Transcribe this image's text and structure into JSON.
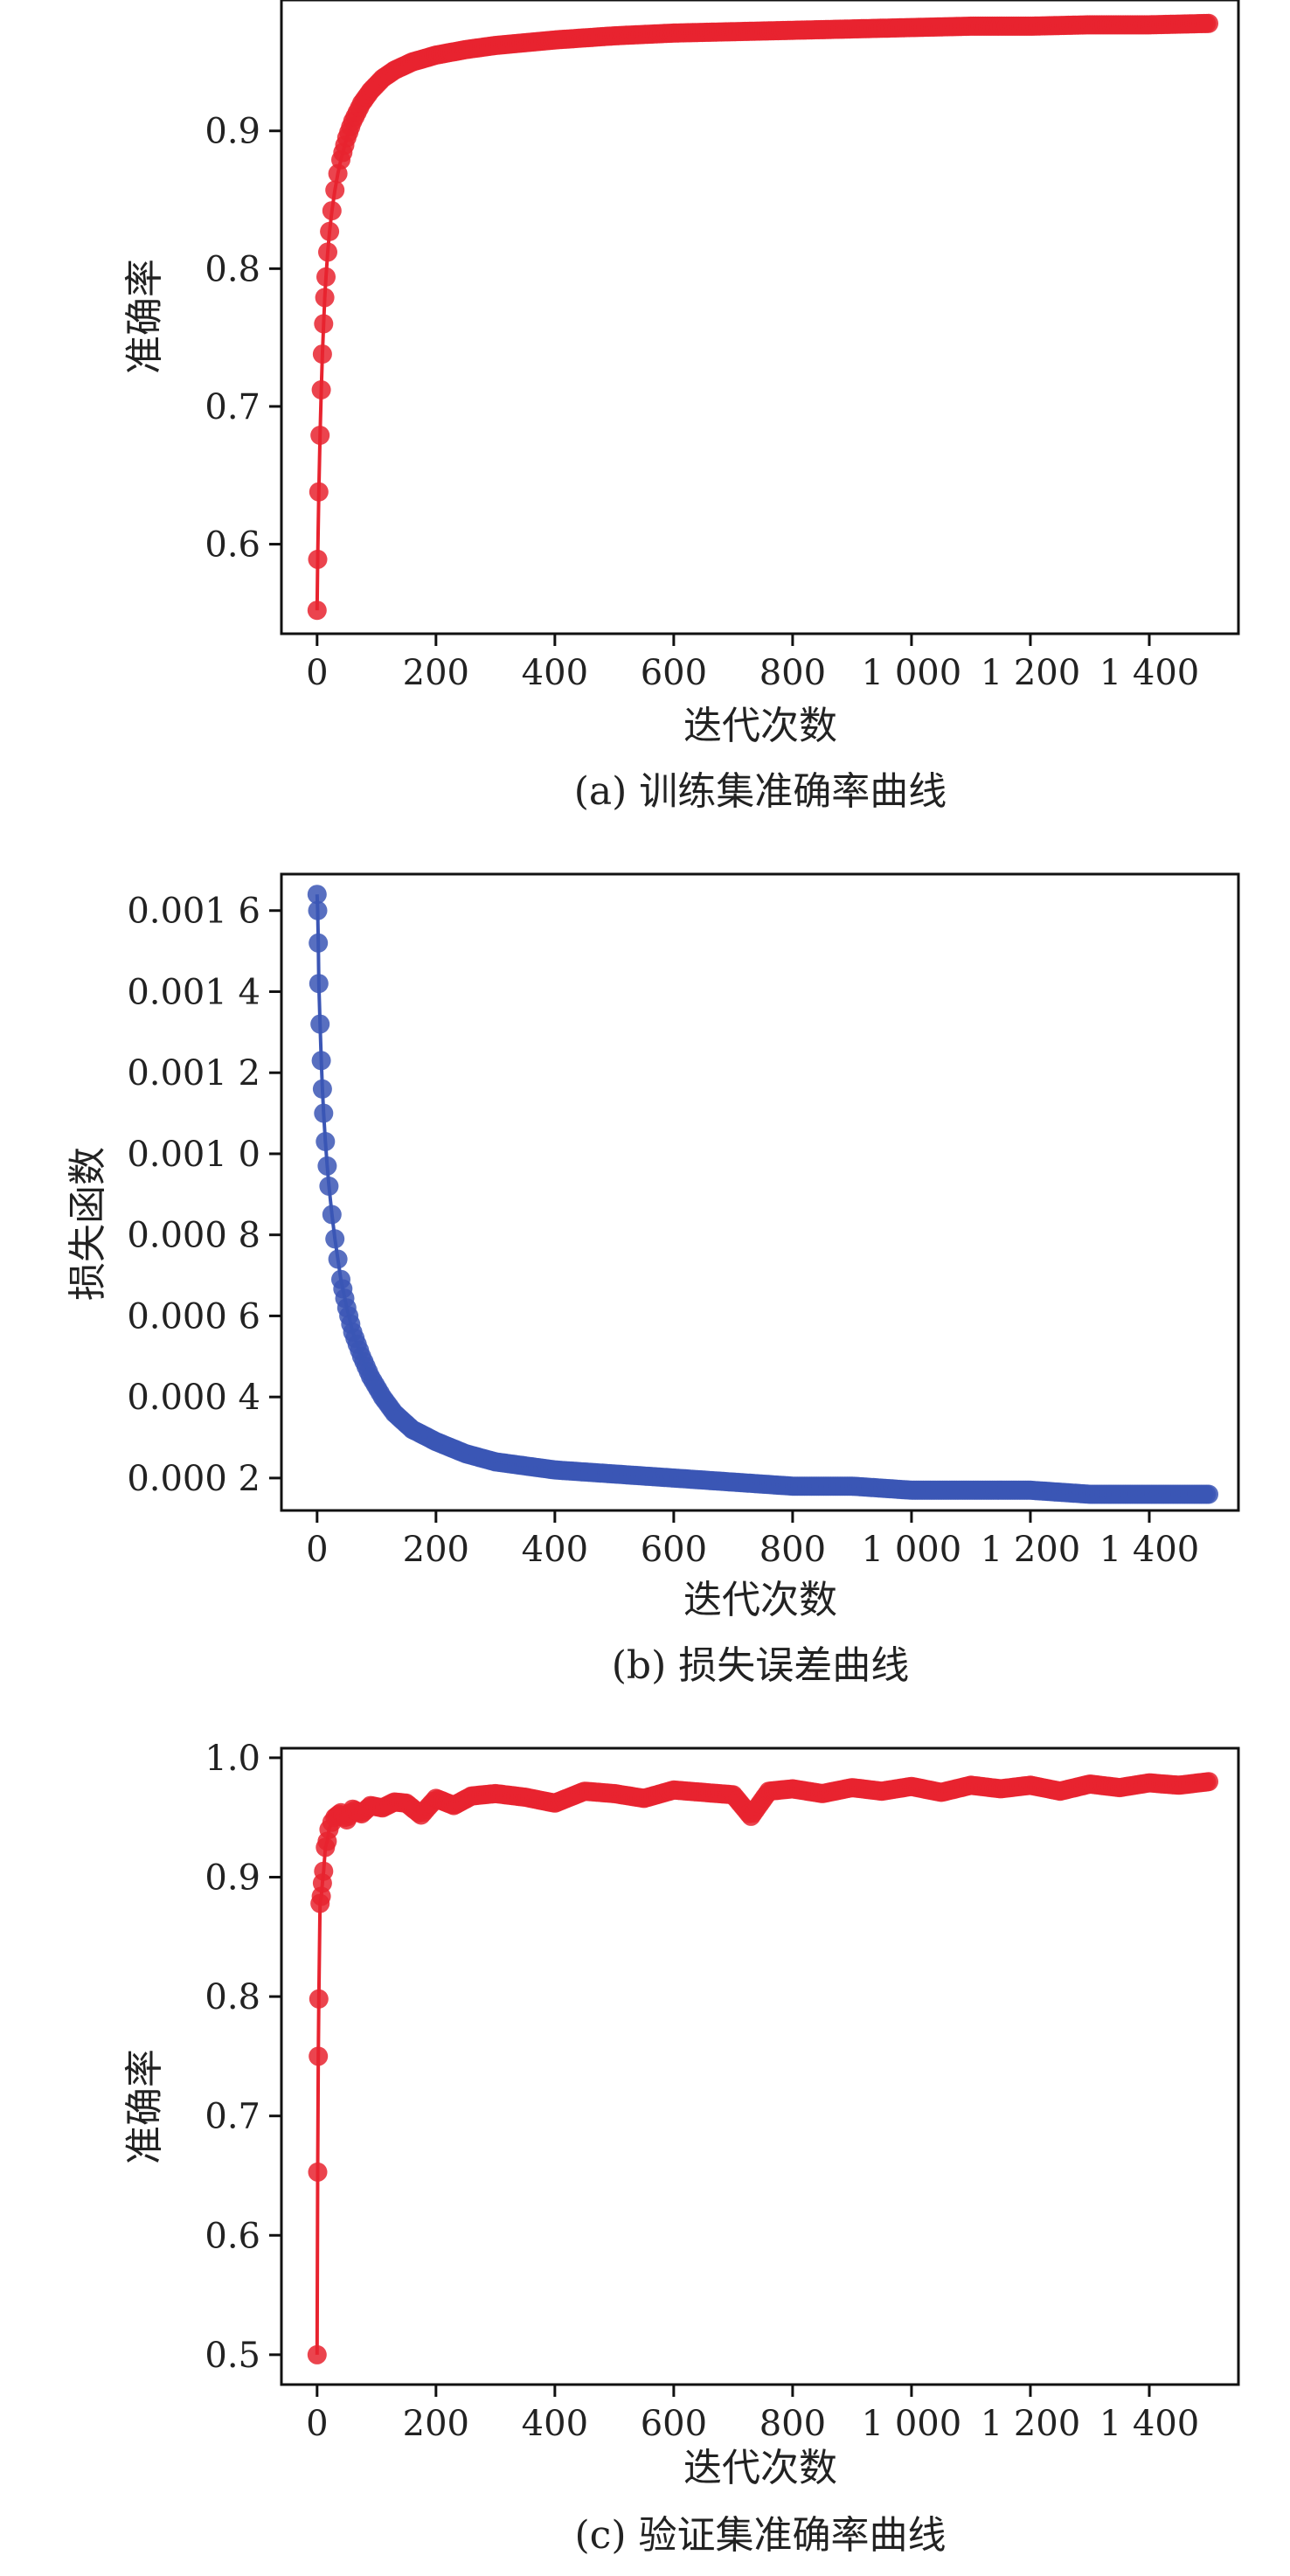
{
  "chart_data": [
    {
      "type": "line",
      "caption": "(a) 训练集准确率曲线",
      "xlabel": "迭代次数",
      "ylabel": "准确率",
      "xlim": [
        -60,
        1550
      ],
      "ylim": [
        0.535,
        0.995
      ],
      "xticks": [
        0,
        200,
        400,
        600,
        800,
        1000,
        1200,
        1400
      ],
      "xtick_labels": [
        "0",
        "200",
        "400",
        "600",
        "800",
        "1 000",
        "1 200",
        "1 400"
      ],
      "yticks": [
        0.6,
        0.7,
        0.8,
        0.9
      ],
      "ytick_labels": [
        "0.6",
        "0.7",
        "0.8",
        "0.9"
      ],
      "grid": false,
      "legend": "none",
      "series": [
        {
          "color": "#e8232f",
          "points": [
            [
              0,
              0.552
            ],
            [
              1,
              0.589
            ],
            [
              3,
              0.638
            ],
            [
              5,
              0.679
            ],
            [
              7,
              0.712
            ],
            [
              9,
              0.738
            ],
            [
              11,
              0.76
            ],
            [
              13,
              0.779
            ],
            [
              15,
              0.794
            ],
            [
              18,
              0.812
            ],
            [
              21,
              0.827
            ],
            [
              25,
              0.842
            ],
            [
              30,
              0.857
            ],
            [
              35,
              0.869
            ],
            [
              40,
              0.879
            ],
            [
              50,
              0.895
            ],
            [
              60,
              0.907
            ],
            [
              75,
              0.92
            ],
            [
              90,
              0.929
            ],
            [
              110,
              0.938
            ],
            [
              130,
              0.944
            ],
            [
              160,
              0.95
            ],
            [
              200,
              0.955
            ],
            [
              250,
              0.959
            ],
            [
              300,
              0.962
            ],
            [
              400,
              0.966
            ],
            [
              500,
              0.969
            ],
            [
              600,
              0.971
            ],
            [
              700,
              0.972
            ],
            [
              800,
              0.973
            ],
            [
              900,
              0.974
            ],
            [
              1000,
              0.975
            ],
            [
              1100,
              0.976
            ],
            [
              1200,
              0.976
            ],
            [
              1300,
              0.977
            ],
            [
              1400,
              0.977
            ],
            [
              1500,
              0.978
            ]
          ]
        }
      ]
    },
    {
      "type": "line",
      "caption": "(b) 损失误差曲线",
      "xlabel": "迭代次数",
      "ylabel": "损失函数",
      "xlim": [
        -60,
        1550
      ],
      "ylim": [
        0.00012,
        0.00169
      ],
      "xticks": [
        0,
        200,
        400,
        600,
        800,
        1000,
        1200,
        1400
      ],
      "xtick_labels": [
        "0",
        "200",
        "400",
        "600",
        "800",
        "1 000",
        "1 200",
        "1 400"
      ],
      "yticks": [
        0.0002,
        0.0004,
        0.0006,
        0.0008,
        0.001,
        0.0012,
        0.0014,
        0.0016
      ],
      "ytick_labels": [
        "0.000 2",
        "0.000 4",
        "0.000 6",
        "0.000 8",
        "0.001 0",
        "0.001 2",
        "0.001 4",
        "0.001 6"
      ],
      "grid": false,
      "legend": "none",
      "series": [
        {
          "color": "#3b56b5",
          "points": [
            [
              0,
              0.00164
            ],
            [
              1,
              0.0016
            ],
            [
              2,
              0.00152
            ],
            [
              3,
              0.00142
            ],
            [
              5,
              0.00132
            ],
            [
              7,
              0.00123
            ],
            [
              9,
              0.00116
            ],
            [
              11,
              0.0011
            ],
            [
              14,
              0.00103
            ],
            [
              17,
              0.00097
            ],
            [
              20,
              0.00092
            ],
            [
              25,
              0.00085
            ],
            [
              30,
              0.00079
            ],
            [
              35,
              0.00074
            ],
            [
              40,
              0.00069
            ],
            [
              50,
              0.00062
            ],
            [
              60,
              0.00056
            ],
            [
              75,
              0.0005
            ],
            [
              90,
              0.00045
            ],
            [
              110,
              0.0004
            ],
            [
              130,
              0.00036
            ],
            [
              160,
              0.00032
            ],
            [
              200,
              0.00029
            ],
            [
              250,
              0.00026
            ],
            [
              300,
              0.00024
            ],
            [
              400,
              0.00022
            ],
            [
              500,
              0.00021
            ],
            [
              600,
              0.0002
            ],
            [
              700,
              0.00019
            ],
            [
              800,
              0.00018
            ],
            [
              900,
              0.00018
            ],
            [
              1000,
              0.00017
            ],
            [
              1100,
              0.00017
            ],
            [
              1200,
              0.00017
            ],
            [
              1300,
              0.00016
            ],
            [
              1400,
              0.00016
            ],
            [
              1500,
              0.00016
            ]
          ]
        }
      ]
    },
    {
      "type": "line",
      "caption": "(c) 验证集准确率曲线",
      "xlabel": "迭代次数",
      "ylabel": "准确率",
      "xlim": [
        -60,
        1550
      ],
      "ylim": [
        0.475,
        1.008
      ],
      "xticks": [
        0,
        200,
        400,
        600,
        800,
        1000,
        1200,
        1400
      ],
      "xtick_labels": [
        "0",
        "200",
        "400",
        "600",
        "800",
        "1 000",
        "1 200",
        "1 400"
      ],
      "yticks": [
        0.5,
        0.6,
        0.7,
        0.8,
        0.9,
        1.0
      ],
      "ytick_labels": [
        "0.5",
        "0.6",
        "0.7",
        "0.8",
        "0.9",
        "1.0"
      ],
      "grid": false,
      "legend": "none",
      "series": [
        {
          "color": "#e8232f",
          "points": [
            [
              0,
              0.5
            ],
            [
              1,
              0.653
            ],
            [
              2,
              0.75
            ],
            [
              3,
              0.798
            ],
            [
              5,
              0.878
            ],
            [
              7,
              0.884
            ],
            [
              9,
              0.895
            ],
            [
              11,
              0.905
            ],
            [
              14,
              0.925
            ],
            [
              17,
              0.93
            ],
            [
              20,
              0.94
            ],
            [
              25,
              0.946
            ],
            [
              30,
              0.95
            ],
            [
              40,
              0.954
            ],
            [
              50,
              0.948
            ],
            [
              60,
              0.957
            ],
            [
              75,
              0.953
            ],
            [
              90,
              0.96
            ],
            [
              110,
              0.958
            ],
            [
              130,
              0.963
            ],
            [
              150,
              0.962
            ],
            [
              175,
              0.952
            ],
            [
              200,
              0.966
            ],
            [
              230,
              0.96
            ],
            [
              260,
              0.968
            ],
            [
              300,
              0.97
            ],
            [
              350,
              0.967
            ],
            [
              400,
              0.962
            ],
            [
              450,
              0.972
            ],
            [
              500,
              0.97
            ],
            [
              550,
              0.966
            ],
            [
              600,
              0.973
            ],
            [
              650,
              0.971
            ],
            [
              700,
              0.969
            ],
            [
              730,
              0.951
            ],
            [
              760,
              0.972
            ],
            [
              800,
              0.974
            ],
            [
              850,
              0.97
            ],
            [
              900,
              0.975
            ],
            [
              950,
              0.972
            ],
            [
              1000,
              0.976
            ],
            [
              1050,
              0.971
            ],
            [
              1100,
              0.977
            ],
            [
              1150,
              0.974
            ],
            [
              1200,
              0.977
            ],
            [
              1250,
              0.972
            ],
            [
              1300,
              0.978
            ],
            [
              1350,
              0.975
            ],
            [
              1400,
              0.979
            ],
            [
              1450,
              0.977
            ],
            [
              1500,
              0.98
            ]
          ]
        }
      ]
    }
  ]
}
